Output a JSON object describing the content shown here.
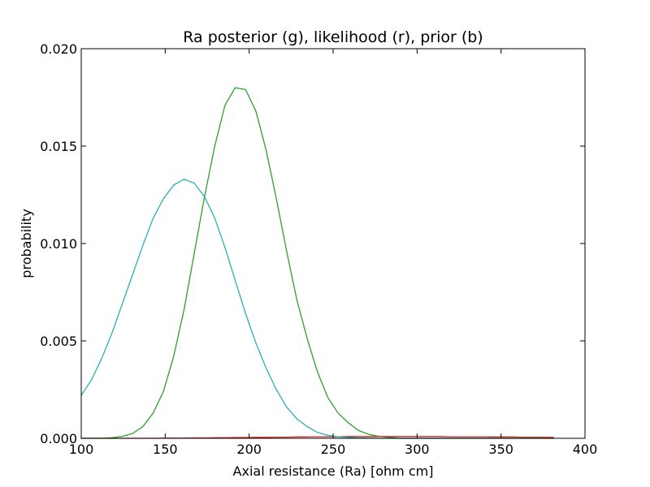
{
  "chart_data": {
    "type": "line",
    "title": "Ra posterior (g), likelihood (r), prior (b)",
    "xlabel": "Axial resistance (Ra) [ohm cm]",
    "ylabel": "probability",
    "xlim": [
      100,
      400
    ],
    "ylim": [
      0,
      0.02
    ],
    "xticks": [
      "100",
      "150",
      "200",
      "250",
      "300",
      "350",
      "400"
    ],
    "yticks": [
      "0.000",
      "0.005",
      "0.010",
      "0.015",
      "0.020"
    ],
    "grid": false,
    "legend": "none",
    "x": [
      100,
      106.1,
      112.2,
      118.3,
      124.5,
      130.6,
      136.7,
      142.8,
      148.9,
      155.0,
      161.2,
      167.3,
      173.4,
      179.5,
      185.6,
      191.7,
      197.9,
      204.0,
      210.1,
      216.2,
      222.3,
      228.4,
      234.6,
      240.7,
      246.8,
      252.9,
      259.0,
      265.1,
      271.3,
      277.4,
      283.5,
      289.6,
      295.7,
      301.8,
      308.0,
      314.1,
      320.2,
      326.3,
      332.4,
      338.5,
      344.7,
      350.8,
      356.9,
      363.0,
      369.1,
      375.2,
      381.4
    ],
    "series": [
      {
        "color": "#2ca02c",
        "values": [
          0.0,
          0.0,
          0.0,
          3e-05,
          0.0001,
          0.00025,
          0.0006,
          0.0013,
          0.0024,
          0.0042,
          0.0066,
          0.0095,
          0.0124,
          0.015,
          0.0171,
          0.018,
          0.0179,
          0.0168,
          0.0148,
          0.0123,
          0.0096,
          0.0071,
          0.0051,
          0.0034,
          0.0021,
          0.0013,
          0.0008,
          0.0004,
          0.0002,
          0.0001,
          5e-05,
          0.0,
          0.0,
          0.0,
          0.0,
          0.0,
          0.0,
          0.0,
          0.0,
          0.0,
          0.0,
          0.0,
          0.0,
          0.0,
          0.0,
          0.0,
          0.0
        ]
      },
      {
        "color": "#d62728",
        "values": [
          0.0,
          0.0,
          0.0,
          0.0,
          0.0,
          0.0,
          0.0,
          0.0,
          1e-05,
          1e-05,
          1e-05,
          2e-05,
          2e-05,
          3e-05,
          3e-05,
          4e-05,
          4e-05,
          5e-05,
          5e-05,
          6e-05,
          6e-05,
          7e-05,
          7e-05,
          8e-05,
          8e-05,
          8e-05,
          9e-05,
          9e-05,
          9e-05,
          9e-05,
          9e-05,
          9e-05,
          9e-05,
          9e-05,
          9e-05,
          9e-05,
          8e-05,
          8e-05,
          8e-05,
          8e-05,
          7e-05,
          7e-05,
          7e-05,
          6e-05,
          6e-05,
          6e-05,
          5e-05
        ]
      },
      {
        "color": "#2ab0b0",
        "values": [
          0.0022,
          0.003,
          0.0041,
          0.0054,
          0.0069,
          0.0084,
          0.0099,
          0.0113,
          0.0123,
          0.013,
          0.0133,
          0.0131,
          0.0124,
          0.0113,
          0.0098,
          0.0081,
          0.0064,
          0.0049,
          0.0036,
          0.0025,
          0.0016,
          0.001,
          0.0006,
          0.0003,
          0.00015,
          8e-05,
          4e-05,
          2e-05,
          1e-05,
          0.0,
          0.0,
          0.0,
          0.0,
          0.0,
          0.0,
          0.0,
          0.0,
          0.0,
          0.0,
          0.0,
          0.0,
          0.0,
          0.0,
          0.0,
          0.0,
          0.0,
          0.0
        ]
      }
    ]
  }
}
